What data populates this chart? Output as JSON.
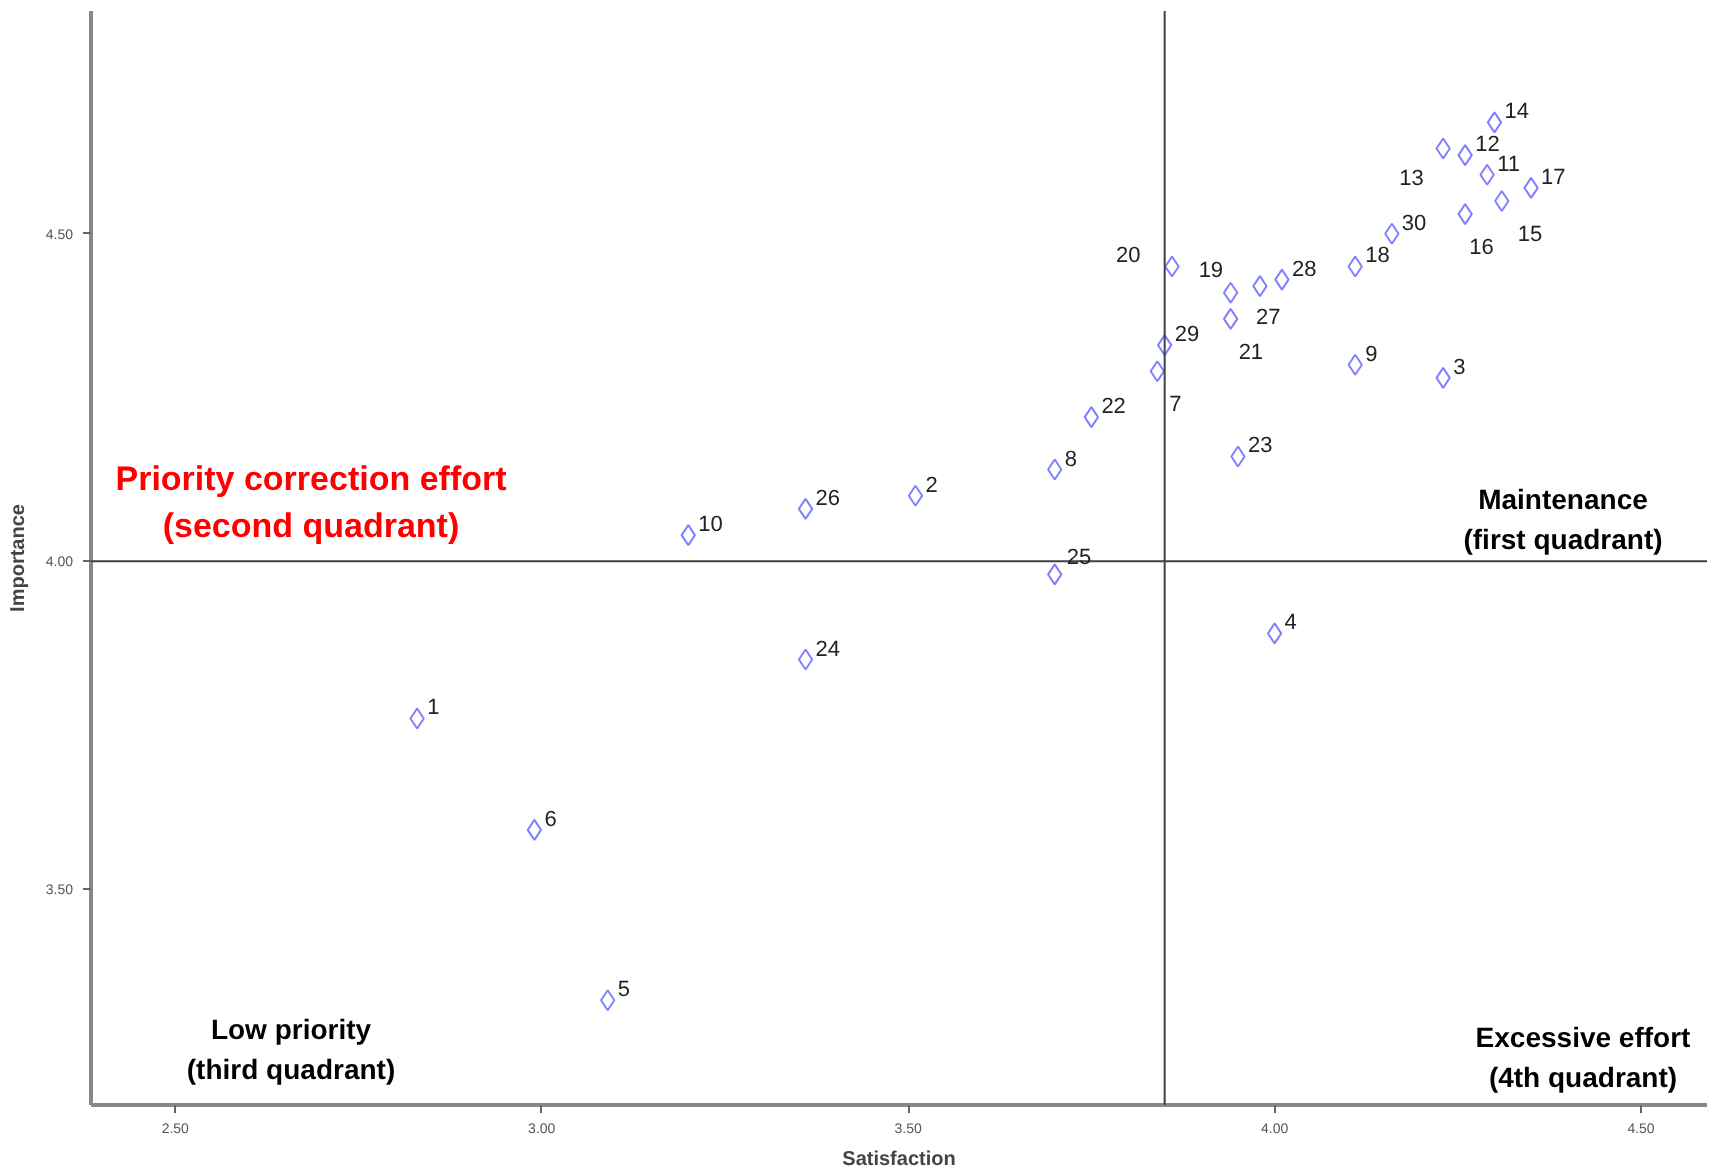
{
  "chart_data": {
    "type": "scatter",
    "xlabel": "Satisfaction",
    "ylabel": "Importance",
    "x": [
      2.83,
      3.51,
      4.23,
      4.0,
      3.09,
      2.99,
      3.84,
      3.7,
      4.11,
      3.2,
      4.29,
      4.26,
      4.23,
      4.3,
      4.31,
      4.26,
      4.35,
      4.11,
      3.94,
      3.86,
      3.94,
      3.75,
      3.95,
      3.36,
      3.7,
      3.36,
      3.98,
      4.01,
      3.85,
      4.16
    ],
    "series": [
      {
        "color": "#8080ff",
        "values": [
          3.76,
          4.1,
          4.28,
          3.89,
          3.33,
          3.59,
          4.29,
          4.14,
          4.3,
          4.04,
          4.59,
          4.62,
          4.63,
          4.67,
          4.55,
          4.53,
          4.57,
          4.45,
          4.41,
          4.45,
          4.37,
          4.22,
          4.16,
          3.85,
          3.98,
          4.08,
          4.42,
          4.43,
          4.33,
          4.5
        ]
      }
    ],
    "marker": "diamond",
    "grid": false,
    "xlim": [
      2.385,
      4.59
    ],
    "ylim": [
      3.17,
      4.84
    ],
    "xticks": [
      {
        "value": 2.5,
        "label": "2.50"
      },
      {
        "value": 3.0,
        "label": "3.00"
      },
      {
        "value": 3.5,
        "label": "3.50"
      },
      {
        "value": 4.0,
        "label": "4.00"
      },
      {
        "value": 4.5,
        "label": "4.50"
      }
    ],
    "yticks": [
      {
        "value": 3.5,
        "label": "3.50"
      },
      {
        "value": 4.0,
        "label": "4.00"
      },
      {
        "value": 4.5,
        "label": "4.50"
      }
    ],
    "ref_lines": [
      {
        "axis": "x",
        "value": 3.85,
        "color": "#404040"
      },
      {
        "axis": "y",
        "value": 4.0,
        "color": "#404040"
      }
    ],
    "annotations": [
      "Priority correction effort\n(second quadrant)",
      "Maintenance\n(first quadrant)",
      "Low priority\n(third quadrant)",
      "Excessive effort\n(4th quadrant)",
      {
        "text": "1",
        "x": 2.83,
        "y": 3.76
      },
      {
        "text": "2",
        "x": 3.51,
        "y": 4.1
      },
      {
        "text": "3",
        "x": 4.23,
        "y": 4.28
      },
      {
        "text": "4",
        "x": 4.0,
        "y": 3.89
      },
      {
        "text": "5",
        "x": 3.09,
        "y": 3.33
      },
      {
        "text": "6",
        "x": 2.99,
        "y": 3.59
      },
      {
        "text": "7",
        "x": 3.84,
        "y": 4.29
      },
      {
        "text": "8",
        "x": 3.7,
        "y": 4.14
      },
      {
        "text": "9",
        "x": 4.11,
        "y": 4.3
      },
      {
        "text": "10",
        "x": 3.2,
        "y": 4.04
      },
      {
        "text": "11",
        "x": 4.29,
        "y": 4.59
      },
      {
        "text": "12",
        "x": 4.26,
        "y": 4.62
      },
      {
        "text": "13",
        "x": 4.23,
        "y": 4.63
      },
      {
        "text": "14",
        "x": 4.3,
        "y": 4.67
      },
      {
        "text": "15",
        "x": 4.31,
        "y": 4.55
      },
      {
        "text": "16",
        "x": 4.26,
        "y": 4.53
      },
      {
        "text": "17",
        "x": 4.35,
        "y": 4.57
      },
      {
        "text": "18",
        "x": 4.11,
        "y": 4.45
      },
      {
        "text": "19",
        "x": 3.94,
        "y": 4.41
      },
      {
        "text": "20",
        "x": 3.86,
        "y": 4.45
      },
      {
        "text": "21",
        "x": 3.94,
        "y": 4.37
      },
      {
        "text": "22",
        "x": 3.75,
        "y": 4.22
      },
      {
        "text": "23",
        "x": 3.95,
        "y": 4.16
      },
      {
        "text": "24",
        "x": 3.36,
        "y": 3.85
      },
      {
        "text": "25",
        "x": 3.7,
        "y": 3.98
      },
      {
        "text": "26",
        "x": 3.36,
        "y": 4.08
      },
      {
        "text": "27",
        "x": 3.98,
        "y": 4.42
      },
      {
        "text": "28",
        "x": 4.01,
        "y": 4.43
      },
      {
        "text": "29",
        "x": 3.85,
        "y": 4.33
      },
      {
        "text": "30",
        "x": 4.16,
        "y": 4.5
      }
    ]
  }
}
